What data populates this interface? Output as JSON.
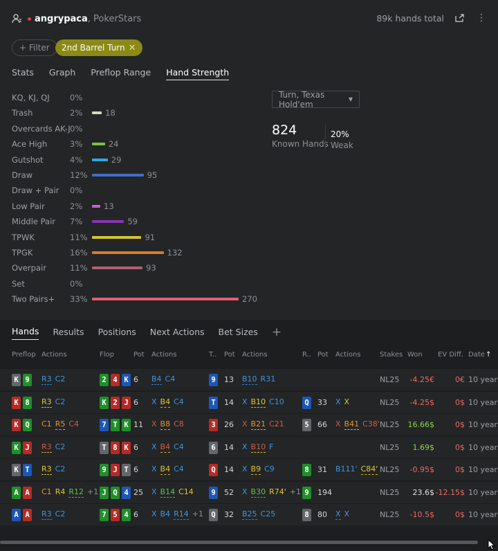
{
  "header": {
    "user": "angrypaca",
    "site": ", PokerStars",
    "total": "89k hands total"
  },
  "filter": {
    "label": "+ Filter",
    "chip": "2nd Barrel Turn"
  },
  "tabs": [
    "Stats",
    "Graph",
    "Preflop Range",
    "Hand Strength"
  ],
  "colors": {
    "accent": "#8b8a17"
  },
  "hand_strength": [
    {
      "label": "KQ, KJ, QJ",
      "pct": "0%",
      "count": "",
      "value": 0,
      "color": ""
    },
    {
      "label": "Trash",
      "pct": "2%",
      "count": "18",
      "value": 18,
      "color": "#d7d7c4"
    },
    {
      "label": "Overcards AK-J",
      "pct": "0%",
      "count": "",
      "value": 0,
      "color": ""
    },
    {
      "label": "Ace High",
      "pct": "3%",
      "count": "24",
      "value": 24,
      "color": "#7cc142"
    },
    {
      "label": "Gutshot",
      "pct": "4%",
      "count": "29",
      "value": 29,
      "color": "#2ea8e0"
    },
    {
      "label": "Draw",
      "pct": "12%",
      "count": "95",
      "value": 95,
      "color": "#3f6ec8"
    },
    {
      "label": "Draw + Pair",
      "pct": "0%",
      "count": "",
      "value": 0,
      "color": ""
    },
    {
      "label": "Low Pair",
      "pct": "2%",
      "count": "13",
      "value": 13,
      "color": "#c064c8"
    },
    {
      "label": "Middle Pair",
      "pct": "7%",
      "count": "59",
      "value": 59,
      "color": "#8a34b0"
    },
    {
      "label": "TPWK",
      "pct": "11%",
      "count": "91",
      "value": 91,
      "color": "#d2c62c"
    },
    {
      "label": "TPGK",
      "pct": "16%",
      "count": "132",
      "value": 132,
      "color": "#de7a27"
    },
    {
      "label": "Overpair",
      "pct": "11%",
      "count": "93",
      "value": 93,
      "color": "#b16072"
    },
    {
      "label": "Set",
      "pct": "0%",
      "count": "",
      "value": 0,
      "color": ""
    },
    {
      "label": "Two Pairs+",
      "pct": "33%",
      "count": "270",
      "value": 270,
      "color": "#e45e72"
    }
  ],
  "game_select": "Turn, Texas Hold'em",
  "known": {
    "value": "824",
    "label": "Known Hands"
  },
  "weak": {
    "value": "20%",
    "label": "Weak"
  },
  "bottom_tabs": [
    "Hands",
    "Results",
    "Positions",
    "Next Actions",
    "Bet Sizes"
  ],
  "columns": [
    "Preflop",
    "Actions",
    "Flop",
    "Pot",
    "Actions",
    "T..",
    "Pot",
    "Actions",
    "R..",
    "Pot",
    "Actions",
    "Stakes",
    "Won",
    "EV Diff.",
    "Date"
  ],
  "hands": [
    {
      "pre": [
        [
          "K",
          "s"
        ],
        [
          "9",
          "c"
        ]
      ],
      "pa": [
        [
          "R3",
          "ab",
          "u1"
        ],
        [
          "C2",
          "ab",
          ""
        ]
      ],
      "flop": [
        [
          "2",
          "c"
        ],
        [
          "4",
          "h"
        ],
        [
          "K",
          "d"
        ]
      ],
      "fp": "6",
      "fa": [
        [
          "B4",
          "ab",
          "u1"
        ],
        [
          "C4",
          "ab",
          ""
        ]
      ],
      "turn": [
        "9",
        "d"
      ],
      "tp": "13",
      "ta": [
        [
          "B10",
          "ab",
          "u1"
        ],
        [
          "R31",
          "ab",
          ""
        ]
      ],
      "river": null,
      "rp": "",
      "ra": [],
      "stakes": "NL25",
      "won": "-4.25€",
      "wc": "red",
      "ev": "0€",
      "evc": "red",
      "date": "10 years"
    },
    {
      "pre": [
        [
          "K",
          "h"
        ],
        [
          "8",
          "c"
        ]
      ],
      "pa": [
        [
          "R3",
          "ay",
          "u2"
        ],
        [
          "C2",
          "ab",
          ""
        ]
      ],
      "flop": [
        [
          "K",
          "c"
        ],
        [
          "2",
          "h"
        ],
        [
          "J",
          "h"
        ]
      ],
      "fp": "6",
      "fa": [
        [
          "X",
          "ax",
          ""
        ],
        [
          "B4",
          "ay",
          "u2"
        ],
        [
          "C4",
          "ab",
          ""
        ]
      ],
      "turn": [
        "T",
        "d"
      ],
      "tp": "14",
      "ta": [
        [
          "X",
          "ax",
          ""
        ],
        [
          "B10",
          "ay",
          "u2"
        ],
        [
          "C10",
          "ab",
          ""
        ]
      ],
      "river": [
        "Q",
        "d"
      ],
      "rp": "33",
      "ra": [
        [
          "X",
          "ax",
          ""
        ],
        [
          "X",
          "ay",
          ""
        ]
      ],
      "stakes": "NL25",
      "won": "-4.25$",
      "wc": "red",
      "ev": "0$",
      "evc": "red",
      "date": "10 years"
    },
    {
      "pre": [
        [
          "K",
          "h"
        ],
        [
          "Q",
          "c"
        ]
      ],
      "pa": [
        [
          "C1",
          "ao",
          ""
        ],
        [
          "R5",
          "ao",
          "u2"
        ],
        [
          "C4",
          "ap",
          ""
        ]
      ],
      "flop": [
        [
          "7",
          "d"
        ],
        [
          "T",
          "c"
        ],
        [
          "K",
          "c"
        ]
      ],
      "fp": "11",
      "fa": [
        [
          "X",
          "ap",
          ""
        ],
        [
          "B8",
          "ao",
          "u2"
        ],
        [
          "C8",
          "ap",
          ""
        ]
      ],
      "turn": [
        "3",
        "h"
      ],
      "tp": "26",
      "ta": [
        [
          "X",
          "ap",
          ""
        ],
        [
          "B21",
          "ao",
          "u2"
        ],
        [
          "C21",
          "ap",
          ""
        ]
      ],
      "river": [
        "5",
        "s"
      ],
      "rp": "66",
      "ra": [
        [
          "X",
          "ap",
          ""
        ],
        [
          "B41",
          "ao",
          "u2"
        ],
        [
          "C38'",
          "ap",
          ""
        ]
      ],
      "stakes": "NL25",
      "won": "16.66$",
      "wc": "grn",
      "ev": "0$",
      "evc": "red",
      "date": "10 years"
    },
    {
      "pre": [
        [
          "K",
          "c"
        ],
        [
          "J",
          "h"
        ]
      ],
      "pa": [
        [
          "R3",
          "ap",
          "u2"
        ],
        [
          "C2",
          "ab",
          ""
        ]
      ],
      "flop": [
        [
          "T",
          "s"
        ],
        [
          "8",
          "h"
        ],
        [
          "K",
          "h"
        ]
      ],
      "fp": "6",
      "fa": [
        [
          "X",
          "ax",
          ""
        ],
        [
          "B4",
          "ap",
          "u2"
        ],
        [
          "C4",
          "ab",
          ""
        ]
      ],
      "turn": [
        "6",
        "s"
      ],
      "tp": "14",
      "ta": [
        [
          "X",
          "ax",
          ""
        ],
        [
          "B10",
          "ap",
          "u2"
        ],
        [
          "F",
          "ab",
          ""
        ]
      ],
      "river": null,
      "rp": "",
      "ra": [],
      "stakes": "NL25",
      "won": "1.69$",
      "wc": "grn",
      "ev": "0$",
      "evc": "red",
      "date": "10 years"
    },
    {
      "pre": [
        [
          "K",
          "s"
        ],
        [
          "T",
          "d"
        ]
      ],
      "pa": [
        [
          "R3",
          "ay",
          "u2"
        ],
        [
          "C2",
          "ab",
          ""
        ]
      ],
      "flop": [
        [
          "9",
          "c"
        ],
        [
          "J",
          "h"
        ],
        [
          "T",
          "s"
        ]
      ],
      "fp": "6",
      "fa": [
        [
          "X",
          "ax",
          ""
        ],
        [
          "B4",
          "ay",
          "u2"
        ],
        [
          "C4",
          "ab",
          ""
        ]
      ],
      "turn": [
        "Q",
        "h"
      ],
      "tp": "14",
      "ta": [
        [
          "X",
          "ax",
          ""
        ],
        [
          "B9",
          "ay",
          "u2"
        ],
        [
          "C9",
          "ab",
          ""
        ]
      ],
      "river": [
        "8",
        "c"
      ],
      "rp": "31",
      "ra": [
        [
          "B111'",
          "ab",
          ""
        ],
        [
          "C84'",
          "ay",
          "u2"
        ]
      ],
      "stakes": "NL25",
      "won": "-0.95$",
      "wc": "red",
      "ev": "0$",
      "evc": "red",
      "date": "10 years"
    },
    {
      "pre": [
        [
          "A",
          "c"
        ],
        [
          "A",
          "h"
        ]
      ],
      "pa": [
        [
          "C1",
          "ao",
          ""
        ],
        [
          "R4",
          "ay",
          ""
        ],
        [
          "R12",
          "ag",
          "u3"
        ],
        [
          "+1",
          "more1",
          ""
        ]
      ],
      "flop": [
        [
          "J",
          "c"
        ],
        [
          "Q",
          "c"
        ],
        [
          "4",
          "d"
        ]
      ],
      "fp": "25",
      "fa": [
        [
          "X",
          "ax",
          ""
        ],
        [
          "B14",
          "ag",
          "u3"
        ],
        [
          "C14",
          "ay",
          ""
        ]
      ],
      "turn": [
        "9",
        "d"
      ],
      "tp": "52",
      "ta": [
        [
          "X",
          "ax",
          ""
        ],
        [
          "B30",
          "ag",
          "u3"
        ],
        [
          "R74'",
          "ay",
          ""
        ],
        [
          "+1",
          "more1",
          ""
        ]
      ],
      "river": [
        "9",
        "c"
      ],
      "rp": "194",
      "ra": [],
      "stakes": "NL25",
      "won": "23.6$",
      "wc": "wht",
      "ev": "-12.15$",
      "evc": "red",
      "date": "10 years"
    },
    {
      "pre": [
        [
          "A",
          "d"
        ],
        [
          "A",
          "h"
        ]
      ],
      "pa": [
        [
          "R3",
          "ab",
          "u1"
        ],
        [
          "C2",
          "ab",
          ""
        ]
      ],
      "flop": [
        [
          "7",
          "c"
        ],
        [
          "5",
          "h"
        ],
        [
          "4",
          "c"
        ]
      ],
      "fp": "6",
      "fa": [
        [
          "X",
          "ab",
          ""
        ],
        [
          "B4",
          "ab",
          ""
        ],
        [
          "R14",
          "ab",
          "u1"
        ],
        [
          "+1",
          "more1",
          ""
        ]
      ],
      "turn": [
        "Q",
        "s"
      ],
      "tp": "32",
      "ta": [
        [
          "B25",
          "ab",
          "u1"
        ],
        [
          "C25",
          "ab",
          ""
        ]
      ],
      "river": [
        "8",
        "s"
      ],
      "rp": "80",
      "ra": [
        [
          "X",
          "ab",
          "u1"
        ],
        [
          "X",
          "ab",
          ""
        ]
      ],
      "stakes": "NL25",
      "won": "-10.5$",
      "wc": "red",
      "ev": "0$",
      "evc": "red",
      "date": "10 years"
    }
  ]
}
